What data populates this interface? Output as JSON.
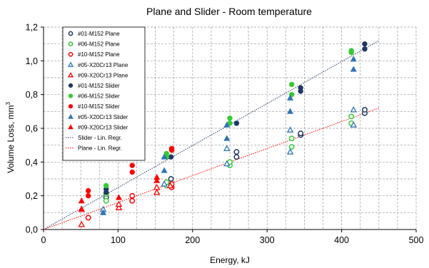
{
  "chart_data": {
    "type": "scatter",
    "title": "Plane and Slider - Room temperature",
    "xlabel": "Energy, kJ",
    "ylabel": "Volume Loss, mm",
    "ylabel_sup": "3",
    "xlim": [
      0,
      500
    ],
    "ylim": [
      0,
      1.2
    ],
    "xticks": [
      "0",
      "100",
      "200",
      "300",
      "400",
      "500"
    ],
    "yticks": [
      "0,0",
      "0,2",
      "0,4",
      "0,6",
      "0,8",
      "1,0",
      "1,2"
    ],
    "grid": true,
    "legend_position": "top-left",
    "series": [
      {
        "name": "#01-M152 Plane",
        "marker": "circle",
        "filled": false,
        "color": "#1f3864",
        "points": [
          [
            84,
            0.19
          ],
          [
            171,
            0.3
          ],
          [
            259,
            0.43
          ],
          [
            259,
            0.46
          ],
          [
            345,
            0.56
          ],
          [
            345,
            0.57
          ],
          [
            431,
            0.69
          ],
          [
            431,
            0.71
          ]
        ]
      },
      {
        "name": "#06-M152 Plane",
        "marker": "circle",
        "filled": false,
        "color": "#33cc33",
        "points": [
          [
            84,
            0.17
          ],
          [
            84,
            0.21
          ],
          [
            165,
            0.26
          ],
          [
            165,
            0.28
          ],
          [
            250,
            0.38
          ],
          [
            250,
            0.4
          ],
          [
            333,
            0.49
          ],
          [
            333,
            0.54
          ],
          [
            413,
            0.63
          ],
          [
            413,
            0.67
          ]
        ]
      },
      {
        "name": "#10-M152 Plane",
        "marker": "circle",
        "filled": false,
        "color": "#ff0000",
        "points": [
          [
            60,
            0.07
          ],
          [
            119,
            0.17
          ],
          [
            119,
            0.2
          ],
          [
            172,
            0.25
          ],
          [
            172,
            0.27
          ]
        ]
      },
      {
        "name": "#05-X20Cr13 Plane",
        "marker": "triangle",
        "filled": false,
        "color": "#2e75b6",
        "points": [
          [
            80,
            0.12
          ],
          [
            162,
            0.27
          ],
          [
            246,
            0.39
          ],
          [
            246,
            0.48
          ],
          [
            331,
            0.46
          ],
          [
            331,
            0.59
          ],
          [
            416,
            0.62
          ],
          [
            416,
            0.71
          ]
        ]
      },
      {
        "name": "#09-X20Cr13 Plane",
        "marker": "triangle",
        "filled": false,
        "color": "#ff0000",
        "points": [
          [
            51,
            0.03
          ],
          [
            51,
            0.12
          ],
          [
            101,
            0.13
          ],
          [
            101,
            0.15
          ],
          [
            152,
            0.22
          ],
          [
            152,
            0.25
          ],
          [
            170,
            0.26
          ]
        ]
      },
      {
        "name": "#01-M152 Slider",
        "marker": "circle",
        "filled": true,
        "color": "#1f3864",
        "points": [
          [
            84,
            0.22
          ],
          [
            84,
            0.24
          ],
          [
            171,
            0.43
          ],
          [
            259,
            0.63
          ],
          [
            345,
            0.82
          ],
          [
            345,
            0.84
          ],
          [
            431,
            1.07
          ],
          [
            431,
            1.1
          ]
        ]
      },
      {
        "name": "#06-M152 Slider",
        "marker": "circle",
        "filled": true,
        "color": "#33cc33",
        "points": [
          [
            84,
            0.26
          ],
          [
            165,
            0.43
          ],
          [
            165,
            0.45
          ],
          [
            250,
            0.63
          ],
          [
            250,
            0.66
          ],
          [
            333,
            0.8
          ],
          [
            333,
            0.86
          ],
          [
            413,
            1.05
          ],
          [
            413,
            1.06
          ]
        ]
      },
      {
        "name": "#10-M152 Slider",
        "marker": "circle",
        "filled": true,
        "color": "#ff0000",
        "points": [
          [
            60,
            0.2
          ],
          [
            60,
            0.23
          ],
          [
            119,
            0.34
          ],
          [
            119,
            0.38
          ],
          [
            172,
            0.47
          ],
          [
            172,
            0.48
          ]
        ]
      },
      {
        "name": "#05-X20Cr13 Slider",
        "marker": "triangle",
        "filled": true,
        "color": "#2e75b6",
        "points": [
          [
            80,
            0.1
          ],
          [
            162,
            0.35
          ],
          [
            162,
            0.43
          ],
          [
            246,
            0.54
          ],
          [
            246,
            0.62
          ],
          [
            331,
            0.7
          ],
          [
            331,
            0.78
          ],
          [
            416,
            0.95
          ],
          [
            416,
            1.01
          ]
        ]
      },
      {
        "name": "#09-X20Cr13 Slider",
        "marker": "triangle",
        "filled": true,
        "color": "#ff0000",
        "points": [
          [
            51,
            0.12
          ],
          [
            51,
            0.17
          ],
          [
            101,
            0.19
          ],
          [
            152,
            0.29
          ],
          [
            152,
            0.31
          ]
        ]
      }
    ],
    "regression_lines": [
      {
        "name": "Slider - Lin. Regr.",
        "style": "dotted",
        "color": "#1f3864",
        "from": [
          0,
          0
        ],
        "to": [
          450,
          1.12
        ]
      },
      {
        "name": "Plane - Lin. Regr.",
        "style": "dotted",
        "color": "#ff0000",
        "from": [
          0,
          0
        ],
        "to": [
          450,
          0.72
        ]
      }
    ]
  }
}
